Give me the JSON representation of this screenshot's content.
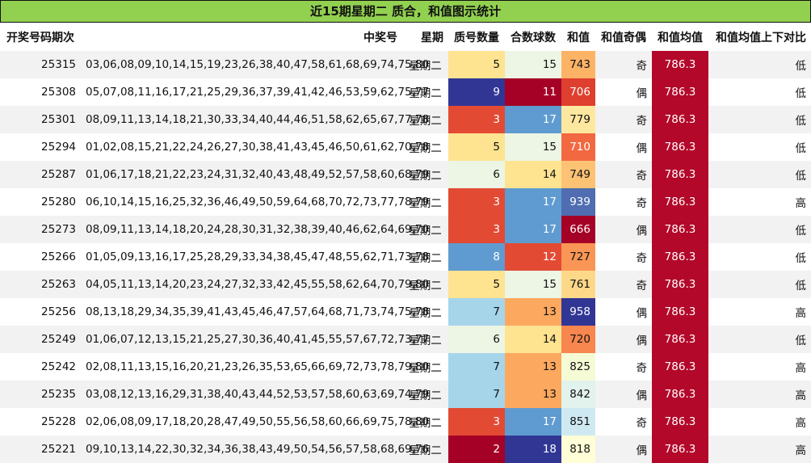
{
  "title": "近15期星期二 质合，和值图示统计",
  "headers": {
    "period": "开奖号码期次",
    "numbers": "中奖号",
    "weekday": "星期",
    "prime_count": "质号数量",
    "composite_count": "合数球数",
    "sum": "和值",
    "sum_parity": "和值奇偶",
    "sum_avg": "和值均值",
    "compare": "和值均值上下对比"
  },
  "colors": {
    "title_bg": "#92d050",
    "avg_bg": "#b3082a",
    "scale": {
      "2": "#a50026",
      "3": "#e34a33",
      "5": "#fee391",
      "6": "#edf5e4",
      "7": "#a6d5ea",
      "8": "#5f9bd0",
      "9": "#313695",
      "11": "#a50026",
      "12": "#e34a33",
      "13": "#fca85e",
      "14": "#fee391",
      "15": "#edf5e4",
      "17": "#5f9bd0",
      "18": "#313695",
      "666": "#a50026",
      "706": "#de3f2e",
      "710": "#f26841",
      "720": "#f8864f",
      "727": "#fa9655",
      "743": "#fdb366",
      "749": "#fdc274",
      "761": "#fed889",
      "779": "#fee89f",
      "818": "#fffed6",
      "825": "#f5fbd5",
      "842": "#e2f2ec",
      "851": "#cfe9f2",
      "939": "#4f6db0",
      "958": "#313695"
    }
  },
  "rows": [
    {
      "period": "25315",
      "numbers": "03,06,08,09,10,14,15,19,23,26,38,40,47,58,61,68,69,74,75,80",
      "weekday": "星期二",
      "prime": "5",
      "composite": "15",
      "sum": "743",
      "parity": "奇",
      "avg": "786.3",
      "compare": "低"
    },
    {
      "period": "25308",
      "numbers": "05,07,08,11,16,17,21,25,29,36,37,39,41,42,46,53,59,62,75,77",
      "weekday": "星期二",
      "prime": "9",
      "composite": "11",
      "sum": "706",
      "parity": "偶",
      "avg": "786.3",
      "compare": "低"
    },
    {
      "period": "25301",
      "numbers": "08,09,11,13,14,18,21,30,33,34,40,44,46,51,58,62,65,67,77,78",
      "weekday": "星期二",
      "prime": "3",
      "composite": "17",
      "sum": "779",
      "parity": "奇",
      "avg": "786.3",
      "compare": "低"
    },
    {
      "period": "25294",
      "numbers": "01,02,08,15,21,22,24,26,27,30,38,41,43,45,46,50,61,62,70,78",
      "weekday": "星期二",
      "prime": "5",
      "composite": "15",
      "sum": "710",
      "parity": "偶",
      "avg": "786.3",
      "compare": "低"
    },
    {
      "period": "25287",
      "numbers": "01,06,17,18,21,22,23,24,31,32,40,43,48,49,52,57,58,60,68,79",
      "weekday": "星期二",
      "prime": "6",
      "composite": "14",
      "sum": "749",
      "parity": "奇",
      "avg": "786.3",
      "compare": "低"
    },
    {
      "period": "25280",
      "numbers": "06,10,14,15,16,25,32,36,46,49,50,59,64,68,70,72,73,77,78,79",
      "weekday": "星期二",
      "prime": "3",
      "composite": "17",
      "sum": "939",
      "parity": "奇",
      "avg": "786.3",
      "compare": "高"
    },
    {
      "period": "25273",
      "numbers": "08,09,11,13,14,18,20,24,28,30,31,32,38,39,40,46,62,64,69,70",
      "weekday": "星期二",
      "prime": "3",
      "composite": "17",
      "sum": "666",
      "parity": "偶",
      "avg": "786.3",
      "compare": "低"
    },
    {
      "period": "25266",
      "numbers": "01,05,09,13,16,17,25,28,29,33,34,38,45,47,48,55,62,71,73,78",
      "weekday": "星期二",
      "prime": "8",
      "composite": "12",
      "sum": "727",
      "parity": "奇",
      "avg": "786.3",
      "compare": "低"
    },
    {
      "period": "25263",
      "numbers": "04,05,11,13,14,20,23,24,27,32,33,42,45,55,58,62,64,70,79,80",
      "weekday": "星期二",
      "prime": "5",
      "composite": "15",
      "sum": "761",
      "parity": "奇",
      "avg": "786.3",
      "compare": "低"
    },
    {
      "period": "25256",
      "numbers": "08,13,18,29,34,35,39,41,43,45,46,47,57,64,68,71,73,74,75,78",
      "weekday": "星期二",
      "prime": "7",
      "composite": "13",
      "sum": "958",
      "parity": "偶",
      "avg": "786.3",
      "compare": "高"
    },
    {
      "period": "25249",
      "numbers": "01,06,07,12,13,15,21,25,27,30,36,40,41,45,55,57,67,72,73,77",
      "weekday": "星期二",
      "prime": "6",
      "composite": "14",
      "sum": "720",
      "parity": "偶",
      "avg": "786.3",
      "compare": "低"
    },
    {
      "period": "25242",
      "numbers": "02,08,11,13,15,16,20,21,23,26,35,53,65,66,69,72,73,78,79,80",
      "weekday": "星期二",
      "prime": "7",
      "composite": "13",
      "sum": "825",
      "parity": "奇",
      "avg": "786.3",
      "compare": "高"
    },
    {
      "period": "25235",
      "numbers": "03,08,12,13,16,29,31,38,40,43,44,52,53,57,58,60,63,69,74,79",
      "weekday": "星期二",
      "prime": "7",
      "composite": "13",
      "sum": "842",
      "parity": "偶",
      "avg": "786.3",
      "compare": "高"
    },
    {
      "period": "25228",
      "numbers": "02,06,08,09,17,18,20,28,47,49,50,55,56,58,60,66,69,75,78,80",
      "weekday": "星期二",
      "prime": "3",
      "composite": "17",
      "sum": "851",
      "parity": "奇",
      "avg": "786.3",
      "compare": "高"
    },
    {
      "period": "25221",
      "numbers": "09,10,13,14,22,30,32,34,36,38,43,49,50,54,56,57,58,68,69,76",
      "weekday": "星期二",
      "prime": "2",
      "composite": "18",
      "sum": "818",
      "parity": "偶",
      "avg": "786.3",
      "compare": "高"
    }
  ]
}
